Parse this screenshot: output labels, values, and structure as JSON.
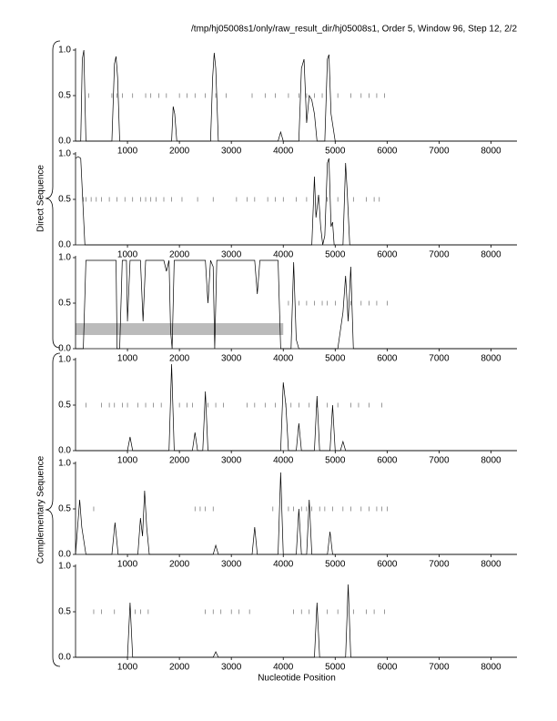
{
  "header": {
    "title": "/tmp/hj05008s1/only/raw_result_dir/hj05008s1, Order 5, Window 96, Step 12, 2/2",
    "xlabel": "Nucleotide Position",
    "group_labels": [
      "Direct Sequence",
      "Complementary Sequence"
    ]
  },
  "chart_data": [
    {
      "type": "line",
      "color": "#000000",
      "xlim": [
        0,
        8500
      ],
      "ylim": [
        0,
        1
      ],
      "xticks": [
        1000,
        2000,
        3000,
        4000,
        5000,
        6000,
        7000,
        8000
      ],
      "yticks": [
        {
          "value": 0,
          "label": "0.0"
        },
        {
          "value": 0.5,
          "label": "0.5"
        },
        {
          "value": 1,
          "label": "1.0"
        }
      ],
      "x": [
        0,
        100,
        130,
        160,
        200,
        700,
        750,
        780,
        810,
        850,
        1850,
        1880,
        1910,
        1950,
        2600,
        2640,
        2670,
        2700,
        2750,
        3900,
        3950,
        4000,
        4300,
        4350,
        4400,
        4450,
        4500,
        4550,
        4600,
        4650,
        4800,
        4850,
        4880,
        4920,
        5000,
        8500
      ],
      "values": [
        0,
        0,
        0.9,
        1.0,
        0,
        0,
        0.85,
        0.93,
        0.7,
        0,
        0,
        0.38,
        0.3,
        0,
        0,
        0.7,
        0.97,
        0.8,
        0,
        0,
        0.1,
        0,
        0,
        0.8,
        0.9,
        0.2,
        0.5,
        0.45,
        0.3,
        0,
        0,
        0.9,
        0.95,
        0.3,
        0,
        0
      ],
      "stop_marks": [
        250,
        700,
        800,
        900,
        1100,
        1350,
        1450,
        1600,
        1750,
        2000,
        2150,
        2300,
        2500,
        2700,
        2900,
        3400,
        3650,
        3850,
        4100,
        4300,
        4450,
        4600,
        4750,
        5050,
        5300,
        5500,
        5650,
        5800,
        5950
      ]
    },
    {
      "type": "line",
      "color": "#000000",
      "xlim": [
        0,
        8500
      ],
      "ylim": [
        0,
        1
      ],
      "xticks": [
        1000,
        2000,
        3000,
        4000,
        5000,
        6000,
        7000,
        8000
      ],
      "yticks": [
        {
          "value": 0,
          "label": "0.0"
        },
        {
          "value": 0.5,
          "label": "0.5"
        },
        {
          "value": 1,
          "label": "1.0"
        }
      ],
      "x": [
        0,
        50,
        100,
        180,
        4550,
        4600,
        4630,
        4680,
        4720,
        4760,
        4800,
        4850,
        4880,
        4920,
        4950,
        4980,
        5150,
        5200,
        5230,
        5280,
        8500
      ],
      "values": [
        0.95,
        0.97,
        0.95,
        0,
        0,
        0.75,
        0.3,
        0.55,
        0.2,
        0,
        0.1,
        0.9,
        0.95,
        0.2,
        0.25,
        0,
        0,
        0.9,
        0.6,
        0,
        0
      ],
      "stop_marks": [
        150,
        200,
        300,
        400,
        500,
        650,
        800,
        950,
        1100,
        1250,
        1350,
        1450,
        1550,
        1700,
        1850,
        2050,
        2350,
        2650,
        3100,
        3300,
        3450,
        3700,
        3850,
        4000,
        4250,
        4450,
        4850,
        5050,
        5350,
        5600,
        5750,
        5850
      ]
    },
    {
      "type": "line",
      "color": "#000000",
      "xlim": [
        0,
        8500
      ],
      "ylim": [
        0,
        1
      ],
      "xticks": [
        1000,
        2000,
        3000,
        4000,
        5000,
        6000,
        7000,
        8000
      ],
      "yticks": [
        {
          "value": 0,
          "label": "0.0"
        },
        {
          "value": 0.5,
          "label": "0.5"
        },
        {
          "value": 1,
          "label": "1.0"
        }
      ],
      "x": [
        0,
        150,
        200,
        780,
        800,
        850,
        900,
        980,
        1000,
        1050,
        1250,
        1300,
        1350,
        1700,
        1750,
        1800,
        1830,
        1860,
        1900,
        2500,
        2550,
        2600,
        2650,
        2680,
        2720,
        2780,
        3450,
        3500,
        3550,
        3900,
        3950,
        4000,
        4150,
        4200,
        4250,
        4300,
        5050,
        5150,
        5200,
        5250,
        5300,
        5350,
        8500
      ],
      "values": [
        0,
        0,
        0.97,
        0.97,
        0,
        0,
        0.97,
        0.97,
        0.3,
        0.97,
        0.97,
        0.3,
        0.97,
        0.97,
        0.85,
        0.97,
        0.2,
        0,
        0.97,
        0.97,
        0.5,
        0.97,
        0.9,
        0,
        0.97,
        0.97,
        0.97,
        0.6,
        0.97,
        0.97,
        0,
        0,
        0,
        0.95,
        0.1,
        0,
        0,
        0.4,
        0.8,
        0.3,
        0.9,
        0,
        0
      ],
      "stop_marks": [
        4100,
        4300,
        4450,
        4600,
        4750,
        4850,
        5000,
        5300,
        5500,
        5650,
        5800,
        6000
      ],
      "highlight": {
        "x": [
          0,
          4000
        ],
        "y": [
          0.15,
          0.28
        ],
        "color": "#bbbbbb"
      }
    },
    {
      "type": "line",
      "color": "#000000",
      "xlim": [
        0,
        8500
      ],
      "ylim": [
        0,
        1
      ],
      "xticks": [
        1000,
        2000,
        3000,
        4000,
        5000,
        6000,
        7000,
        8000
      ],
      "yticks": [
        {
          "value": 0,
          "label": "0.0"
        },
        {
          "value": 0.5,
          "label": "0.5"
        },
        {
          "value": 1,
          "label": "1.0"
        }
      ],
      "x": [
        0,
        1000,
        1050,
        1100,
        1800,
        1850,
        1900,
        2250,
        2300,
        2350,
        2450,
        2500,
        2550,
        3950,
        4000,
        4050,
        4100,
        4250,
        4300,
        4350,
        4600,
        4650,
        4700,
        4900,
        4950,
        5000,
        5100,
        5150,
        5200,
        8500
      ],
      "values": [
        0,
        0,
        0.15,
        0,
        0,
        0.95,
        0,
        0,
        0.2,
        0,
        0,
        0.65,
        0,
        0,
        0.75,
        0.5,
        0,
        0,
        0.3,
        0,
        0,
        0.6,
        0,
        0,
        0.5,
        0,
        0,
        0.1,
        0,
        0
      ],
      "stop_marks": [
        200,
        500,
        650,
        750,
        900,
        1000,
        1200,
        1350,
        1500,
        1650,
        2000,
        2150,
        2250,
        2550,
        2700,
        2850,
        3300,
        3450,
        3650,
        3850,
        4050,
        4150,
        4300,
        4500,
        4650,
        4850,
        5050,
        5300,
        5450,
        5650,
        5900
      ]
    },
    {
      "type": "line",
      "color": "#000000",
      "xlim": [
        0,
        8500
      ],
      "ylim": [
        0,
        1
      ],
      "xticks": [
        1000,
        2000,
        3000,
        4000,
        5000,
        6000,
        7000,
        8000
      ],
      "yticks": [
        {
          "value": 0,
          "label": "0.0"
        },
        {
          "value": 0.5,
          "label": "0.5"
        },
        {
          "value": 1,
          "label": "1.0"
        }
      ],
      "x": [
        0,
        80,
        120,
        200,
        700,
        760,
        820,
        1200,
        1250,
        1290,
        1330,
        1370,
        1420,
        2650,
        2700,
        2750,
        3400,
        3450,
        3500,
        3900,
        3950,
        4000,
        4250,
        4300,
        4350,
        4450,
        4500,
        4550,
        4850,
        4900,
        4950,
        8500
      ],
      "values": [
        0,
        0.6,
        0.3,
        0,
        0,
        0.35,
        0,
        0,
        0.4,
        0.2,
        0.7,
        0.3,
        0,
        0,
        0.1,
        0,
        0,
        0.3,
        0,
        0,
        0.9,
        0,
        0,
        0.5,
        0,
        0,
        0.6,
        0,
        0,
        0.25,
        0,
        0
      ],
      "stop_marks": [
        350,
        2300,
        2400,
        2500,
        2650,
        3800,
        4100,
        4200,
        4350,
        4450,
        4550,
        4700,
        4800,
        4950,
        5150,
        5300,
        5500,
        5650,
        5800,
        5900,
        6000
      ]
    },
    {
      "type": "line",
      "color": "#000000",
      "xlim": [
        0,
        8500
      ],
      "ylim": [
        0,
        1
      ],
      "xticks": [
        1000,
        2000,
        3000,
        4000,
        5000,
        6000,
        7000,
        8000
      ],
      "yticks": [
        {
          "value": 0,
          "label": "0.0"
        },
        {
          "value": 0.5,
          "label": "0.5"
        },
        {
          "value": 1,
          "label": "1.0"
        }
      ],
      "x": [
        0,
        1000,
        1050,
        1100,
        2650,
        2700,
        2750,
        4600,
        4650,
        4700,
        5200,
        5250,
        5300,
        8500
      ],
      "values": [
        0,
        0,
        0.6,
        0,
        0,
        0.06,
        0,
        0,
        0.6,
        0,
        0,
        0.8,
        0,
        0
      ],
      "stop_marks": [
        350,
        500,
        750,
        1150,
        1250,
        1400,
        2500,
        2650,
        2800,
        3000,
        3150,
        3350,
        4200,
        4350,
        4500,
        4850,
        5050,
        5350,
        5600,
        5750,
        5950
      ]
    }
  ]
}
